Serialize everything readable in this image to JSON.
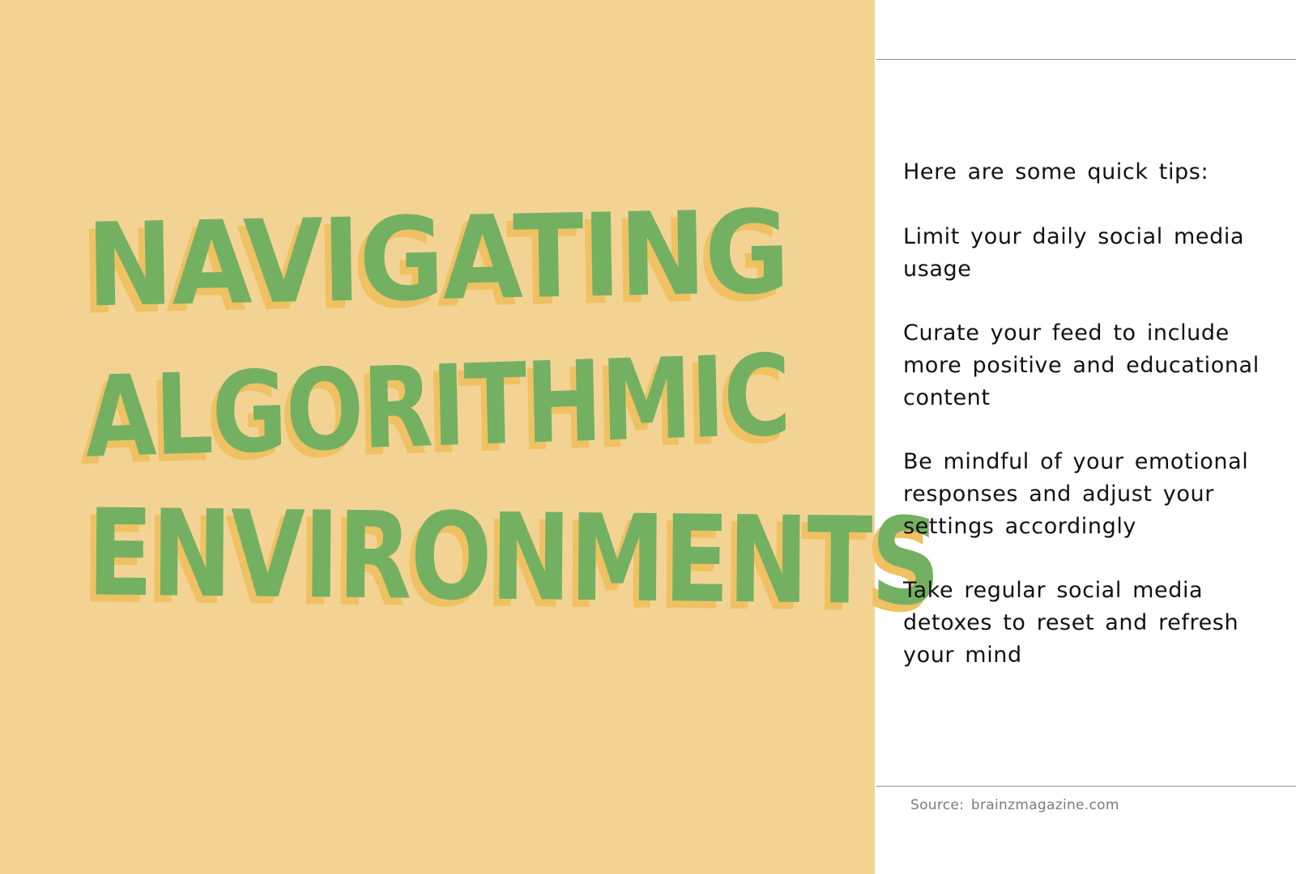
{
  "title": {
    "lines": [
      "Navigating",
      "Algorithmic",
      "Environments"
    ]
  },
  "content": {
    "intro": "Here are some quick tips:",
    "tips": [
      "Limit your daily social media usage",
      "Curate your feed to include more positive and educational content",
      "Be mindful of your emotional responses and adjust your settings accordingly",
      "Take regular social media detoxes to reset and refresh your mind"
    ]
  },
  "footer": {
    "source": "Source: brainzmagazine.com"
  },
  "colors": {
    "panel_background": "#f3d393",
    "title_green": "#74b062",
    "title_shadow": "#efc163",
    "text": "#111111",
    "source_text": "#7a7a7a"
  }
}
